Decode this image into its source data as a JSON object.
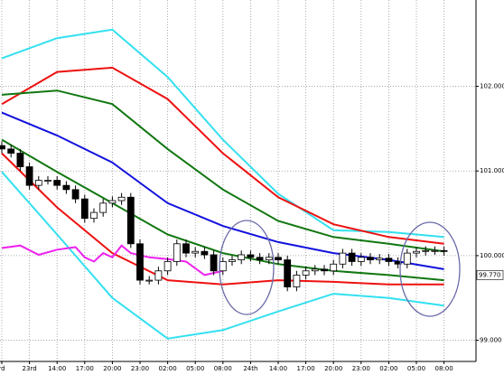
{
  "chart_data": {
    "type": "candlestick",
    "categories": [
      "rd",
      null,
      null,
      "23rd",
      null,
      null,
      "14:00",
      null,
      null,
      "17:00",
      null,
      null,
      "20:00",
      null,
      null,
      "23:00",
      null,
      null,
      "02:00",
      null,
      null,
      "05:00",
      null,
      null,
      "08:00",
      null,
      null,
      "24th",
      null,
      null,
      "14:00",
      null,
      null,
      "17:00",
      null,
      null,
      "20:00",
      null,
      null,
      "23:00",
      null,
      null,
      "02:00",
      null,
      null,
      "05:00",
      null,
      null,
      "08:00"
    ],
    "open": [
      101.3,
      101.26,
      101.21,
      101.05,
      100.83,
      100.89,
      100.89,
      100.83,
      100.78,
      100.67,
      100.44,
      100.51,
      100.62,
      100.65,
      100.69,
      100.14,
      99.71,
      99.71,
      99.82,
      99.93,
      100.14,
      100.03,
      100.05,
      100.01,
      99.82,
      99.93,
      99.95,
      100.01,
      99.98,
      99.95,
      99.98,
      99.95,
      99.63,
      99.77,
      99.82,
      99.84,
      99.82,
      99.9,
      100.03,
      99.93,
      99.98,
      99.95,
      99.97,
      99.93,
      99.9,
      100.03,
      100.05,
      100.06,
      100.06
    ],
    "high": [
      101.35,
      101.31,
      101.26,
      101.1,
      100.94,
      100.94,
      100.94,
      100.88,
      100.83,
      100.72,
      100.56,
      100.67,
      100.7,
      100.74,
      100.74,
      100.19,
      99.76,
      99.87,
      99.98,
      100.19,
      100.19,
      100.1,
      100.1,
      100.06,
      99.98,
      100.0,
      100.06,
      100.06,
      100.03,
      100.03,
      100.03,
      100.0,
      99.82,
      99.87,
      99.89,
      99.89,
      99.95,
      100.08,
      100.08,
      100.03,
      100.03,
      100.02,
      100.02,
      99.98,
      100.08,
      100.1,
      100.11,
      100.11,
      100.11
    ],
    "low": [
      101.21,
      101.16,
      101.0,
      100.78,
      100.78,
      100.84,
      100.78,
      100.73,
      100.62,
      100.39,
      100.39,
      100.46,
      100.57,
      100.6,
      100.09,
      99.66,
      99.66,
      99.66,
      99.77,
      99.88,
      99.98,
      99.98,
      99.96,
      99.77,
      99.77,
      99.88,
      99.9,
      99.93,
      99.9,
      99.9,
      99.9,
      99.58,
      99.58,
      99.72,
      99.77,
      99.77,
      99.77,
      99.85,
      99.88,
      99.88,
      99.9,
      99.9,
      99.88,
      99.85,
      99.85,
      99.98,
      100.0,
      100.01,
      100.0
    ],
    "close": [
      101.26,
      101.21,
      101.05,
      100.83,
      100.89,
      100.89,
      100.83,
      100.78,
      100.67,
      100.44,
      100.51,
      100.62,
      100.65,
      100.69,
      100.14,
      99.71,
      99.71,
      99.82,
      99.93,
      100.14,
      100.03,
      100.05,
      100.01,
      99.82,
      99.93,
      99.95,
      100.01,
      99.98,
      99.95,
      99.98,
      99.95,
      99.63,
      99.77,
      99.82,
      99.84,
      99.82,
      99.9,
      100.03,
      99.93,
      99.98,
      99.95,
      99.97,
      99.93,
      99.9,
      100.03,
      100.05,
      100.06,
      100.06,
      100.05
    ],
    "up_color": "#ffffff",
    "down_color": "#000000",
    "overlays": [
      {
        "color": "#33e0f0",
        "x": [
          0,
          6,
          12,
          18,
          24,
          30,
          36,
          42,
          48
        ],
        "values": [
          102.33,
          102.57,
          102.67,
          102.11,
          101.37,
          100.73,
          100.3,
          100.28,
          100.22
        ]
      },
      {
        "color": "#ee1111",
        "x": [
          0,
          6,
          12,
          18,
          24,
          30,
          36,
          42,
          48
        ],
        "values": [
          101.79,
          102.17,
          102.22,
          101.85,
          101.21,
          100.69,
          100.37,
          100.22,
          100.14
        ]
      },
      {
        "color": "#117711",
        "x": [
          0,
          6,
          12,
          18,
          24,
          30,
          36,
          42,
          48
        ],
        "values": [
          101.9,
          101.95,
          101.79,
          101.26,
          100.78,
          100.41,
          100.22,
          100.14,
          100.05
        ]
      },
      {
        "color": "#1111dd",
        "x": [
          0,
          6,
          12,
          18,
          24,
          30,
          36,
          42,
          48
        ],
        "values": [
          101.69,
          101.42,
          101.1,
          100.62,
          100.35,
          100.16,
          100.03,
          99.95,
          99.84
        ]
      },
      {
        "color": "#117711",
        "x": [
          0,
          6,
          12,
          18,
          24,
          30,
          36,
          42,
          48
        ],
        "values": [
          101.37,
          100.99,
          100.62,
          100.25,
          100.03,
          99.9,
          99.82,
          99.77,
          99.71
        ]
      },
      {
        "color": "#ee1111",
        "x": [
          0,
          6,
          12,
          18,
          24,
          30,
          36,
          42,
          48
        ],
        "values": [
          101.21,
          100.57,
          100.03,
          99.71,
          99.66,
          99.71,
          99.69,
          99.66,
          99.66
        ]
      },
      {
        "color": "#33e0f0",
        "x": [
          0,
          6,
          12,
          18,
          24,
          30,
          36,
          42,
          48
        ],
        "values": [
          100.99,
          100.25,
          99.5,
          99.02,
          99.12,
          99.34,
          99.55,
          99.5,
          99.41
        ]
      },
      {
        "color": "#ee22ee",
        "x": [
          0,
          2,
          4,
          6,
          8,
          9,
          10,
          11,
          12,
          13,
          14,
          16,
          18,
          20,
          22,
          24
        ],
        "values": [
          100.09,
          100.12,
          100.01,
          100.07,
          100.1,
          99.98,
          99.93,
          100.03,
          99.98,
          100.12,
          100.03,
          99.98,
          99.96,
          99.93,
          99.77,
          99.82
        ]
      }
    ],
    "ylim": [
      98.75,
      103.02
    ],
    "yticks": [
      {
        "value": 99,
        "label": "99.000"
      },
      {
        "value": 100,
        "label": "100.000"
      },
      {
        "value": 101,
        "label": "101.000"
      },
      {
        "value": 102,
        "label": "102.000"
      }
    ],
    "last_price": {
      "value": 99.77,
      "label": "99.770"
    },
    "grid": true
  }
}
